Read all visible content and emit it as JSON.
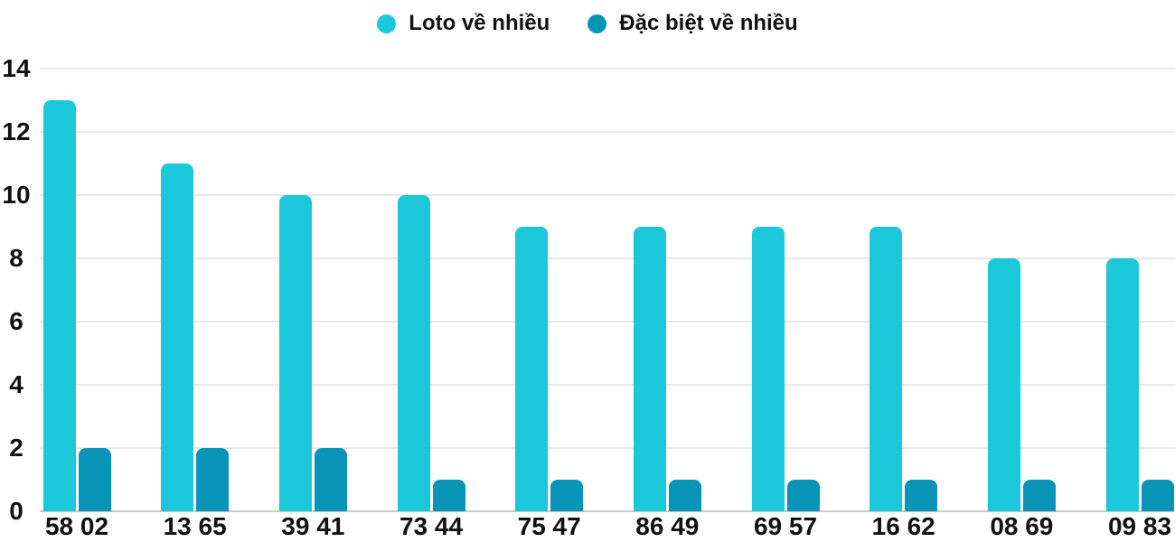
{
  "chart_data": {
    "type": "bar",
    "title": "",
    "xlabel": "",
    "ylabel": "",
    "categories": [
      "58 02",
      "13 65",
      "39 41",
      "73 44",
      "75 47",
      "86 49",
      "69 57",
      "16 62",
      "08 69",
      "09 83"
    ],
    "series": [
      {
        "name": "Loto về nhiều",
        "color": "#1ac8da",
        "values": [
          13,
          11,
          10,
          10,
          9,
          9,
          9,
          9,
          8,
          8
        ]
      },
      {
        "name": "Đặc biệt về nhiều",
        "color": "#0794b7",
        "values": [
          2,
          2,
          2,
          1,
          1,
          1,
          1,
          1,
          1,
          1
        ]
      }
    ],
    "yticks": [
      0,
      2,
      4,
      6,
      8,
      10,
      12,
      14
    ],
    "ylim": [
      0,
      14
    ],
    "legend_position": "top-center",
    "grid": "horizontal",
    "colors": {
      "gridline": "#e8e8e8",
      "axis_baseline": "#cbcbcb",
      "label_text": "#111111",
      "background": "#ffffff"
    }
  }
}
